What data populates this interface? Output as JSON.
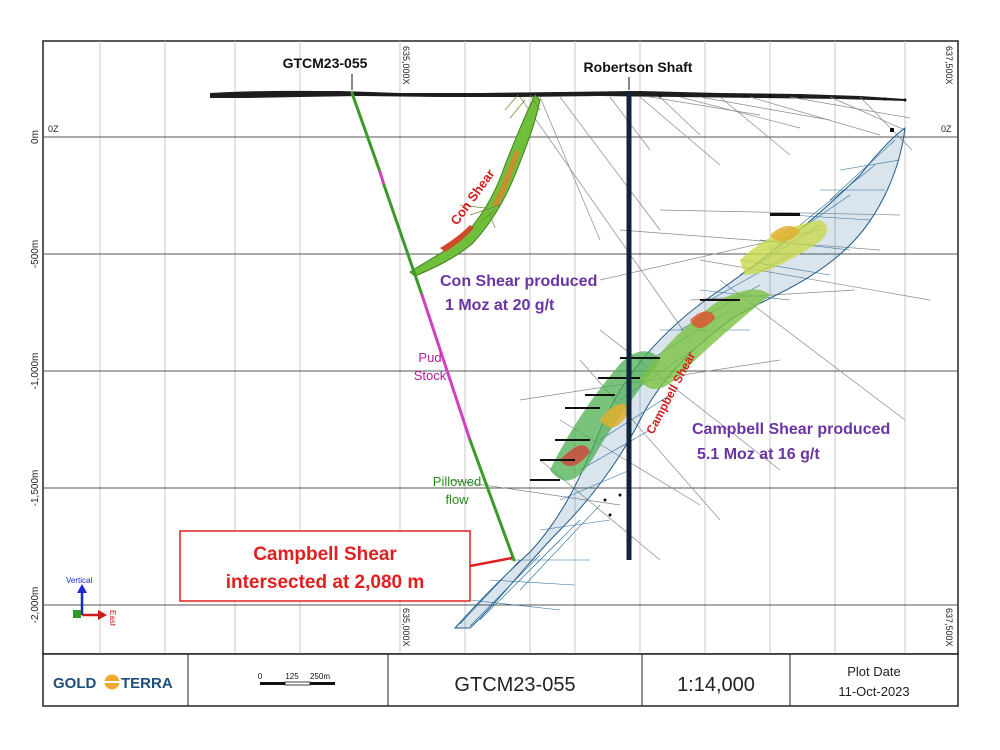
{
  "section": {
    "hole_label": "GTCM23-055",
    "shaft_label": "Robertson Shaft",
    "grid_x_labels": [
      "635,000X",
      "637,500X"
    ],
    "level_labels": [
      "0m",
      "-500m",
      "-1,000m",
      "-1,500m",
      "-2,000m"
    ],
    "zero_label": "0Z",
    "con_shear_label": "Con Shear",
    "campbell_shear_label": "Campbell Shear",
    "con_shear_note": [
      "Con Shear produced",
      "1 Moz at 20 g/t"
    ],
    "campbell_shear_note": [
      "Campbell Shear produced",
      "5.1 Moz at 16 g/t"
    ],
    "pud_stock_label": [
      "Pud",
      "Stock"
    ],
    "pillowed_flow_label": [
      "Pillowed",
      "flow"
    ],
    "intersection_callout": [
      "Campbell Shear",
      "intersected at 2,080 m"
    ],
    "orientation": {
      "vertical_label": "Vertical",
      "east_label": "East"
    }
  },
  "footer": {
    "logo_left": "GOLD",
    "logo_right": "TERRA",
    "scale_bar_ticks": [
      "0",
      "125",
      "250m"
    ],
    "title": "GTCM23-055",
    "scale": "1:14,000",
    "plot_date_label": "Plot Date",
    "plot_date": "11-Oct-2023"
  },
  "colors": {
    "drillhole": "#3a9a2a",
    "pud_stock": "#d040c0",
    "shear_label": "#d02020",
    "note_text": "#6a35a0",
    "mesh": "#2a6a9a",
    "shaft": "#10233a",
    "callout": "#e02020"
  }
}
